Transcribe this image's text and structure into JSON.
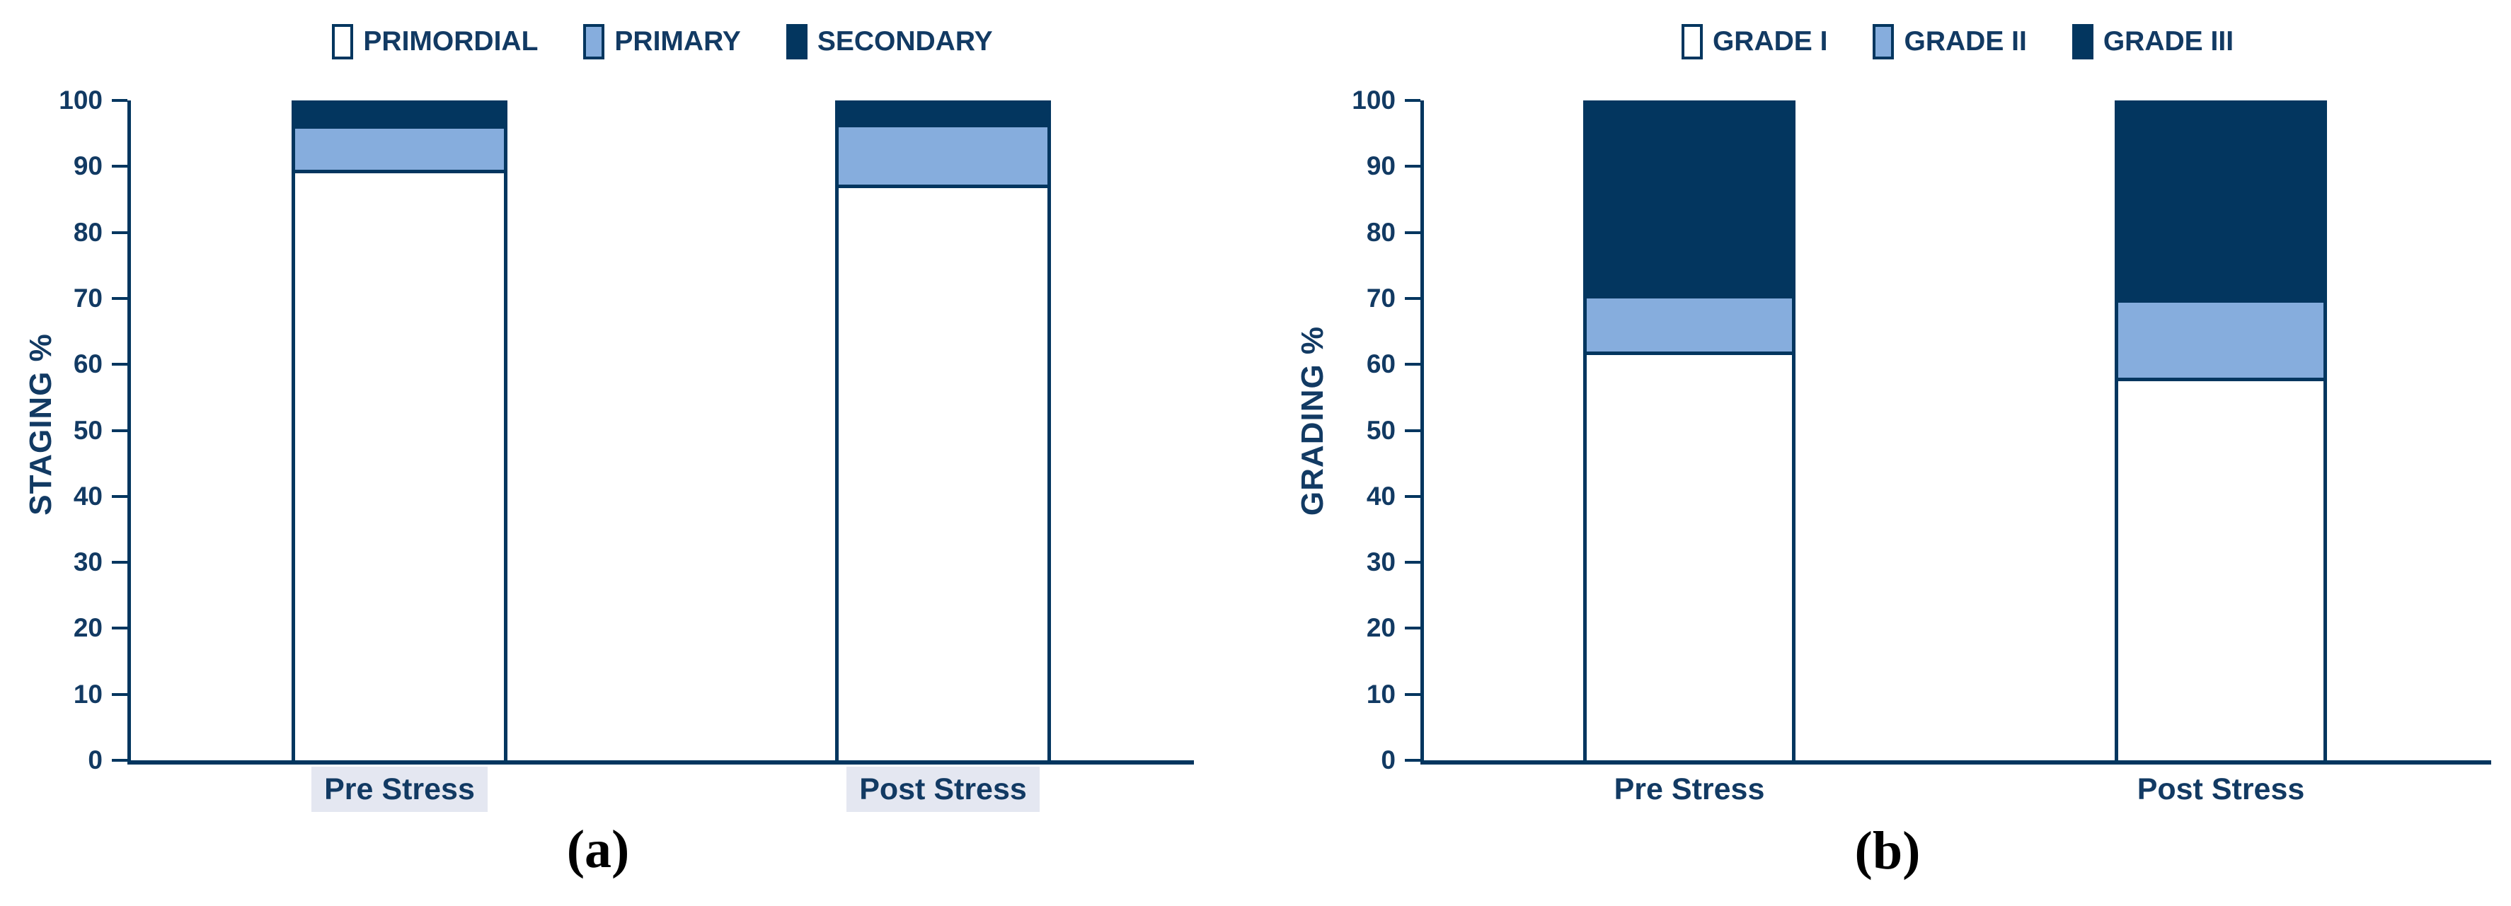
{
  "colors": {
    "navy": "#03365f",
    "text_navy": "#123a63",
    "light_blue": "#86addd",
    "white": "#ffffff",
    "category_highlight_bg": "#e4e7f1",
    "caption_black": "#000000"
  },
  "chart_data": [
    {
      "id": "a",
      "type": "bar",
      "stacked": true,
      "title": "",
      "caption": "(a)",
      "xlabel": "",
      "ylabel": "STAGING %",
      "ylim": [
        0,
        100
      ],
      "yticks": [
        0,
        10,
        20,
        30,
        40,
        50,
        60,
        70,
        80,
        90,
        100
      ],
      "grid": false,
      "legend_position": "top",
      "categories": [
        "Pre Stress",
        "Post Stress"
      ],
      "category_label_highlighted": true,
      "series": [
        {
          "name": "PRIMORDIAL",
          "color": "#ffffff",
          "values": [
            89.5,
            87.3
          ]
        },
        {
          "name": "PRIMARY",
          "color": "#86addd",
          "values": [
            6.2,
            8.6
          ]
        },
        {
          "name": "SECONDARY",
          "color": "#03365f",
          "values": [
            4.3,
            4.1
          ]
        }
      ]
    },
    {
      "id": "b",
      "type": "bar",
      "stacked": true,
      "title": "",
      "caption": "(b)",
      "xlabel": "",
      "ylabel": "GRADING %",
      "ylim": [
        0,
        100
      ],
      "yticks": [
        0,
        10,
        20,
        30,
        40,
        50,
        60,
        70,
        80,
        90,
        100
      ],
      "grid": false,
      "legend_position": "top",
      "categories": [
        "Pre Stress",
        "Post Stress"
      ],
      "category_label_highlighted": false,
      "series": [
        {
          "name": "GRADE I",
          "color": "#ffffff",
          "values": [
            62.0,
            58.0
          ]
        },
        {
          "name": "GRADE II",
          "color": "#86addd",
          "values": [
            8.0,
            11.3
          ]
        },
        {
          "name": "GRADE III",
          "color": "#03365f",
          "values": [
            30.0,
            30.7
          ]
        }
      ]
    }
  ]
}
